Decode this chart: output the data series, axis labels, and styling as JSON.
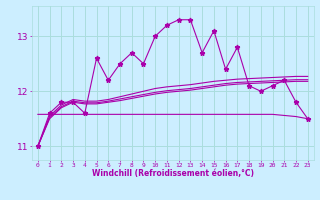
{
  "hours": [
    0,
    1,
    2,
    3,
    4,
    5,
    6,
    7,
    8,
    9,
    10,
    11,
    12,
    13,
    14,
    15,
    16,
    17,
    18,
    19,
    20,
    21,
    22,
    23
  ],
  "windchill": [
    11.0,
    11.6,
    11.8,
    11.8,
    11.6,
    12.6,
    12.2,
    12.5,
    12.7,
    12.5,
    13.0,
    13.2,
    13.3,
    13.3,
    12.7,
    13.1,
    12.4,
    12.8,
    12.1,
    12.0,
    12.1,
    12.2,
    11.8,
    11.5
  ],
  "line_upper": [
    11.0,
    11.55,
    11.75,
    11.85,
    11.82,
    11.82,
    11.85,
    11.9,
    11.95,
    12.0,
    12.05,
    12.08,
    12.1,
    12.12,
    12.15,
    12.18,
    12.2,
    12.22,
    12.23,
    12.24,
    12.25,
    12.26,
    12.27,
    12.27
  ],
  "line_mid1": [
    11.0,
    11.52,
    11.72,
    11.82,
    11.79,
    11.79,
    11.82,
    11.86,
    11.9,
    11.94,
    11.98,
    12.01,
    12.03,
    12.05,
    12.08,
    12.11,
    12.14,
    12.16,
    12.17,
    12.18,
    12.19,
    12.2,
    12.21,
    12.21
  ],
  "line_mid2": [
    11.0,
    11.5,
    11.7,
    11.8,
    11.77,
    11.77,
    11.8,
    11.83,
    11.87,
    11.91,
    11.95,
    11.98,
    12.0,
    12.02,
    12.05,
    12.08,
    12.11,
    12.13,
    12.14,
    12.15,
    12.16,
    12.17,
    12.18,
    12.18
  ],
  "flat_line": [
    11.58,
    11.58,
    11.58,
    11.58,
    11.58,
    11.58,
    11.58,
    11.58,
    11.58,
    11.58,
    11.58,
    11.58,
    11.58,
    11.58,
    11.58,
    11.58,
    11.58,
    11.58,
    11.58,
    11.58,
    11.58,
    11.56,
    11.54,
    11.5
  ],
  "bg_color": "#cceeff",
  "grid_color": "#aadddd",
  "line_color": "#aa00aa",
  "xlabel": "Windchill (Refroidissement éolien,°C)",
  "yticks": [
    11,
    12,
    13
  ],
  "ylim": [
    10.75,
    13.55
  ],
  "xlim": [
    -0.5,
    23.5
  ]
}
